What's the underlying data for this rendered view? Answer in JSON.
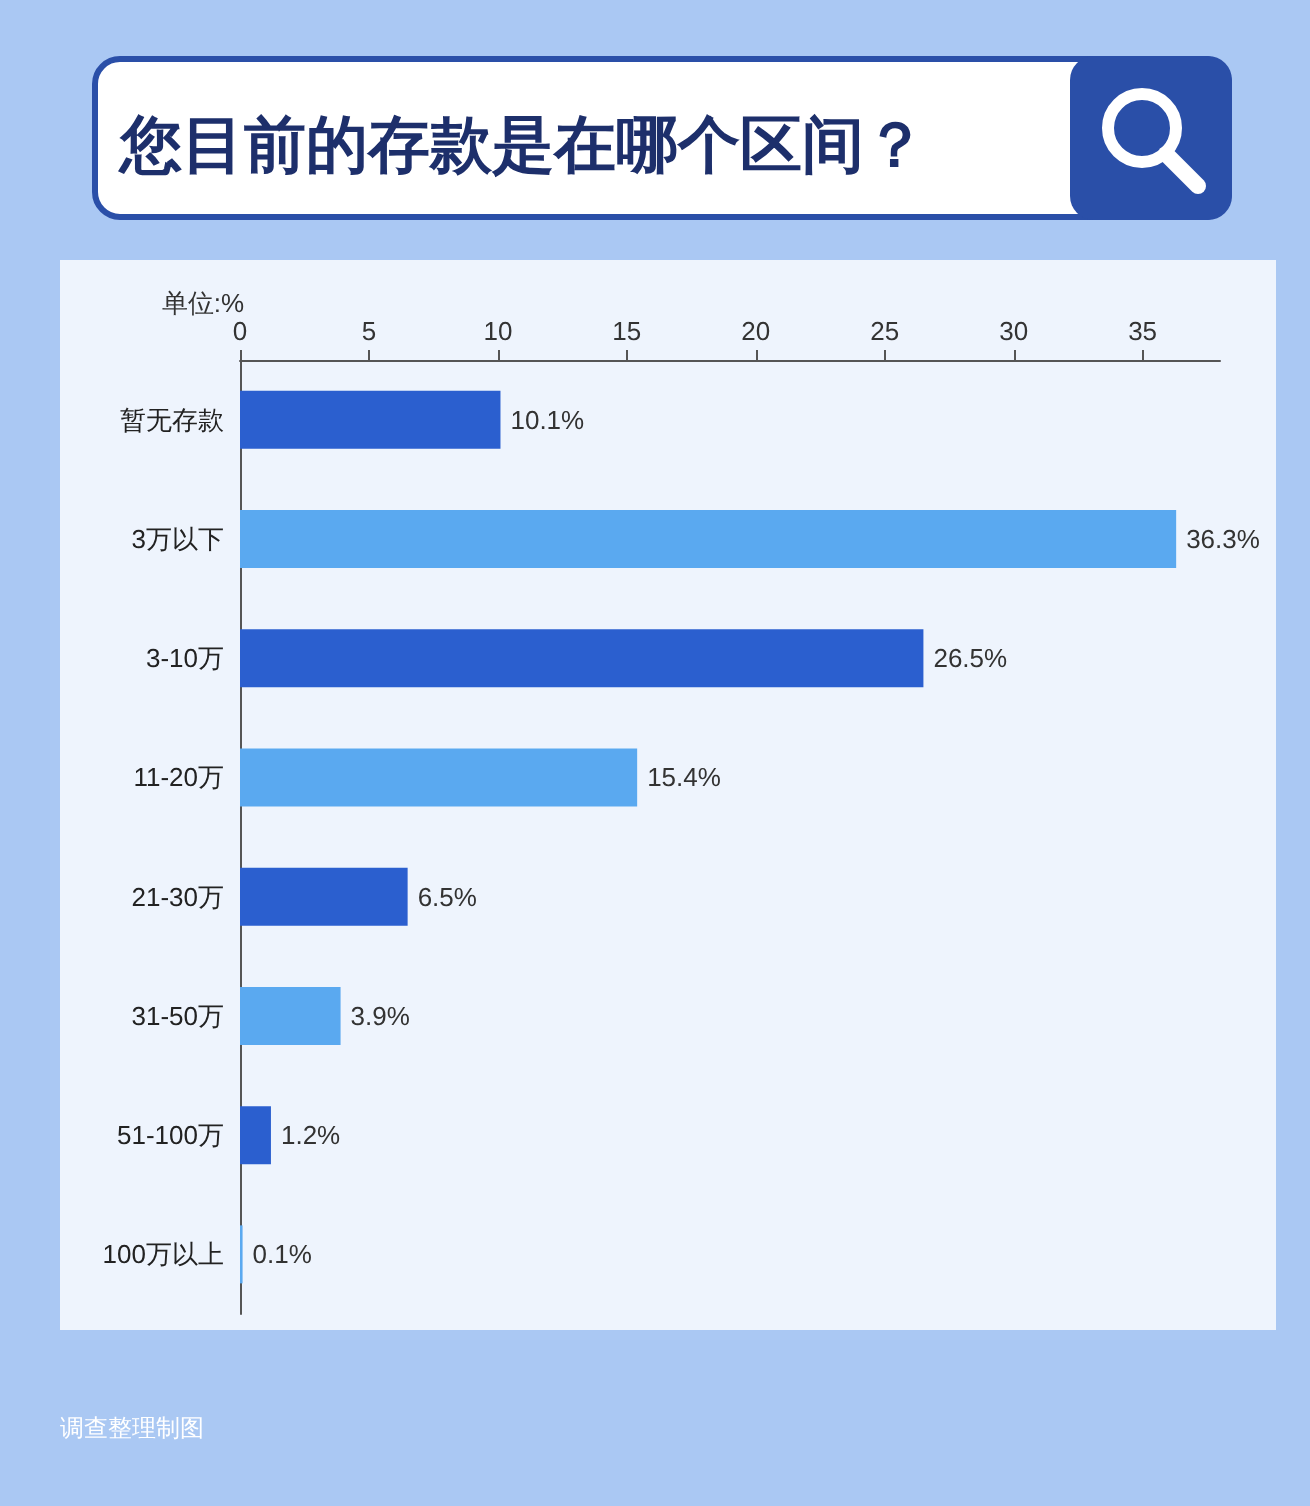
{
  "chart_data": {
    "type": "bar",
    "orientation": "horizontal",
    "title": "您目前的存款是在哪个区间？",
    "xlabel": "单位:%",
    "categories": [
      "暂无存款",
      "3万以下",
      "3-10万",
      "11-20万",
      "21-30万",
      "31-50万",
      "51-100万",
      "100万以上"
    ],
    "values": [
      10.1,
      36.3,
      26.5,
      15.4,
      6.5,
      3.9,
      1.2,
      0.1
    ],
    "colors": [
      "#2b5fcf",
      "#5aa9f0",
      "#2b5fcf",
      "#5aa9f0",
      "#2b5fcf",
      "#5aa9f0",
      "#2b5fcf",
      "#5aa9f0"
    ],
    "value_labels": [
      "10.1%",
      "36.3%",
      "26.5%",
      "15.4%",
      "6.5%",
      "3.9%",
      "1.2%",
      "0.1%"
    ],
    "xlim": [
      0,
      38
    ],
    "xticks": [
      0,
      5,
      10,
      15,
      20,
      25,
      30,
      35
    ],
    "grid": false,
    "annotations": [
      "调查整理制图"
    ]
  }
}
